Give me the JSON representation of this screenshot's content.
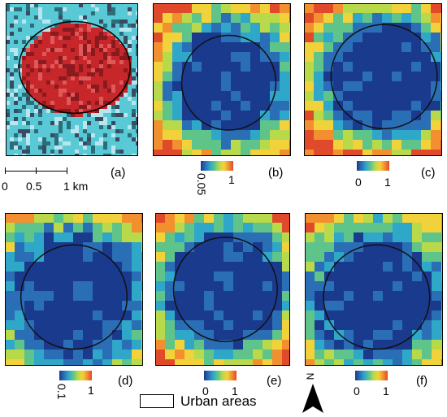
{
  "panels": {
    "a": {
      "label": "(a)"
    },
    "b": {
      "label": "(b)",
      "cb_min": "0.05",
      "cb_max": "1"
    },
    "c": {
      "label": "(c)",
      "cb_min": "0",
      "cb_max": "1"
    },
    "d": {
      "label": "(d)",
      "cb_min": "0.1",
      "cb_max": "1"
    },
    "e": {
      "label": "(e)",
      "cb_min": "0",
      "cb_max": "1"
    },
    "f": {
      "label": "(f)",
      "cb_min": "0",
      "cb_max": "1"
    }
  },
  "scalebar": {
    "t0": "0",
    "t1": "0.5",
    "t2": "1 km"
  },
  "legend": {
    "label": "Urban areas"
  },
  "north": {
    "label": "N"
  },
  "colors": {
    "ramp": [
      "#1a3a8e",
      "#2a6fb6",
      "#2fa7c8",
      "#5fc48a",
      "#b8d94a",
      "#f2d23a",
      "#f29030",
      "#e04a2a"
    ],
    "urban_red": "#c7262a",
    "imagery_cyan": "#59c9d6"
  }
}
